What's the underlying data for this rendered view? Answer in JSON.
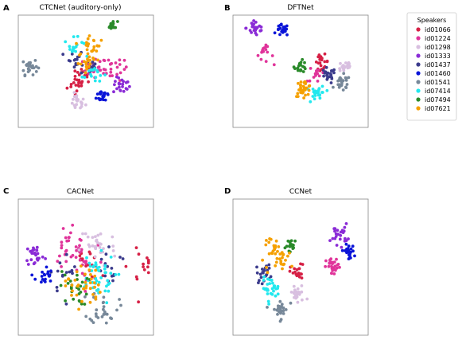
{
  "legend": {
    "title": "Speakers",
    "entries": [
      {
        "label": "id01066",
        "color": "#d62045"
      },
      {
        "label": "id01224",
        "color": "#e0349a"
      },
      {
        "label": "id01298",
        "color": "#d8bfe0"
      },
      {
        "label": "id01333",
        "color": "#8a2bd6"
      },
      {
        "label": "id01437",
        "color": "#3b3b8c"
      },
      {
        "label": "id01460",
        "color": "#0a14d8"
      },
      {
        "label": "id01541",
        "color": "#778899"
      },
      {
        "label": "id07414",
        "color": "#22e8ee"
      },
      {
        "label": "id07494",
        "color": "#2a8a2a"
      },
      {
        "label": "id07621",
        "color": "#f5a000"
      }
    ]
  },
  "chart_data": [
    {
      "type": "scatter",
      "panel": "A",
      "title": "CTCNet (auditory-only)",
      "clusters": [
        {
          "speaker": "id01066",
          "centers": [
            [
              -0.05,
              -0.05
            ],
            [
              -0.15,
              -0.3
            ]
          ],
          "spread": 0.08,
          "n": 30
        },
        {
          "speaker": "id01224",
          "centers": [
            [
              0.5,
              0.05
            ],
            [
              0.15,
              0.05
            ]
          ],
          "spread": 0.1,
          "n": 40
        },
        {
          "speaker": "id01298",
          "centers": [
            [
              -0.15,
              -0.65
            ]
          ],
          "spread": 0.07,
          "n": 22
        },
        {
          "speaker": "id01333",
          "centers": [
            [
              0.6,
              -0.3
            ]
          ],
          "spread": 0.07,
          "n": 22
        },
        {
          "speaker": "id01437",
          "centers": [
            [
              -0.2,
              0.25
            ],
            [
              0.05,
              0.1
            ]
          ],
          "spread": 0.08,
          "n": 28
        },
        {
          "speaker": "id01460",
          "centers": [
            [
              0.3,
              -0.5
            ]
          ],
          "spread": 0.06,
          "n": 22
        },
        {
          "speaker": "id01541",
          "centers": [
            [
              -0.95,
              0.1
            ]
          ],
          "spread": 0.07,
          "n": 26
        },
        {
          "speaker": "id07414",
          "centers": [
            [
              -0.2,
              0.5
            ],
            [
              0.1,
              -0.05
            ]
          ],
          "spread": 0.08,
          "n": 34
        },
        {
          "speaker": "id07494",
          "centers": [
            [
              0.45,
              0.95
            ]
          ],
          "spread": 0.04,
          "n": 18
        },
        {
          "speaker": "id07621",
          "centers": [
            [
              0.1,
              0.55
            ],
            [
              0.05,
              0.2
            ]
          ],
          "spread": 0.09,
          "n": 40
        }
      ]
    },
    {
      "type": "scatter",
      "panel": "B",
      "title": "DFTNet",
      "clusters": [
        {
          "speaker": "id01066",
          "centers": [
            [
              0.35,
              0.2
            ]
          ],
          "spread": 0.06,
          "n": 20
        },
        {
          "speaker": "id01224",
          "centers": [
            [
              -0.6,
              0.35
            ],
            [
              0.25,
              -0.05
            ]
          ],
          "spread": 0.07,
          "n": 30
        },
        {
          "speaker": "id01298",
          "centers": [
            [
              0.75,
              0.1
            ]
          ],
          "spread": 0.06,
          "n": 20
        },
        {
          "speaker": "id01333",
          "centers": [
            [
              -0.75,
              0.9
            ]
          ],
          "spread": 0.08,
          "n": 26
        },
        {
          "speaker": "id01437",
          "centers": [
            [
              0.45,
              -0.1
            ]
          ],
          "spread": 0.07,
          "n": 20
        },
        {
          "speaker": "id01460",
          "centers": [
            [
              -0.3,
              0.85
            ]
          ],
          "spread": 0.05,
          "n": 22
        },
        {
          "speaker": "id01541",
          "centers": [
            [
              0.7,
              -0.25
            ]
          ],
          "spread": 0.07,
          "n": 24
        },
        {
          "speaker": "id07414",
          "centers": [
            [
              0.3,
              -0.45
            ]
          ],
          "spread": 0.06,
          "n": 26
        },
        {
          "speaker": "id07494",
          "centers": [
            [
              0.0,
              0.1
            ]
          ],
          "spread": 0.05,
          "n": 22
        },
        {
          "speaker": "id07621",
          "centers": [
            [
              0.05,
              -0.35
            ]
          ],
          "spread": 0.07,
          "n": 30
        }
      ]
    },
    {
      "type": "scatter",
      "panel": "C",
      "title": "CACNet",
      "clusters": [
        {
          "speaker": "id01066",
          "centers": [
            [
              0.95,
              0.0
            ],
            [
              0.0,
              0.1
            ]
          ],
          "spread": 0.12,
          "n": 30
        },
        {
          "speaker": "id01224",
          "centers": [
            [
              -0.3,
              0.4
            ],
            [
              -0.1,
              0.0
            ]
          ],
          "spread": 0.15,
          "n": 44
        },
        {
          "speaker": "id01298",
          "centers": [
            [
              0.2,
              0.35
            ]
          ],
          "spread": 0.15,
          "n": 30
        },
        {
          "speaker": "id01333",
          "centers": [
            [
              -0.85,
              0.2
            ]
          ],
          "spread": 0.08,
          "n": 24
        },
        {
          "speaker": "id01437",
          "centers": [
            [
              0.4,
              0.0
            ],
            [
              -0.3,
              -0.1
            ]
          ],
          "spread": 0.15,
          "n": 30
        },
        {
          "speaker": "id01460",
          "centers": [
            [
              -0.7,
              -0.15
            ]
          ],
          "spread": 0.07,
          "n": 20
        },
        {
          "speaker": "id01541",
          "centers": [
            [
              0.3,
              -0.65
            ]
          ],
          "spread": 0.12,
          "n": 30
        },
        {
          "speaker": "id07414",
          "centers": [
            [
              0.15,
              -0.2
            ]
          ],
          "spread": 0.17,
          "n": 44
        },
        {
          "speaker": "id07494",
          "centers": [
            [
              -0.2,
              -0.35
            ]
          ],
          "spread": 0.12,
          "n": 26
        },
        {
          "speaker": "id07621",
          "centers": [
            [
              -0.05,
              -0.3
            ]
          ],
          "spread": 0.15,
          "n": 36
        }
      ]
    },
    {
      "type": "scatter",
      "panel": "D",
      "title": "CCNet",
      "clusters": [
        {
          "speaker": "id01066",
          "centers": [
            [
              -0.05,
              -0.1
            ]
          ],
          "spread": 0.06,
          "n": 20
        },
        {
          "speaker": "id01224",
          "centers": [
            [
              0.55,
              0.0
            ]
          ],
          "spread": 0.06,
          "n": 28
        },
        {
          "speaker": "id01298",
          "centers": [
            [
              -0.05,
              -0.45
            ]
          ],
          "spread": 0.07,
          "n": 24
        },
        {
          "speaker": "id01333",
          "centers": [
            [
              0.65,
              0.55
            ]
          ],
          "spread": 0.07,
          "n": 24
        },
        {
          "speaker": "id01437",
          "centers": [
            [
              -0.6,
              -0.1
            ]
          ],
          "spread": 0.07,
          "n": 22
        },
        {
          "speaker": "id01460",
          "centers": [
            [
              0.8,
              0.25
            ]
          ],
          "spread": 0.05,
          "n": 22
        },
        {
          "speaker": "id01541",
          "centers": [
            [
              -0.35,
              -0.7
            ]
          ],
          "spread": 0.07,
          "n": 26
        },
        {
          "speaker": "id07414",
          "centers": [
            [
              -0.5,
              -0.35
            ]
          ],
          "spread": 0.07,
          "n": 30
        },
        {
          "speaker": "id07494",
          "centers": [
            [
              -0.15,
              0.35
            ]
          ],
          "spread": 0.05,
          "n": 20
        },
        {
          "speaker": "id07621",
          "centers": [
            [
              -0.45,
              0.3
            ],
            [
              -0.3,
              0.1
            ]
          ],
          "spread": 0.09,
          "n": 40
        }
      ]
    }
  ]
}
